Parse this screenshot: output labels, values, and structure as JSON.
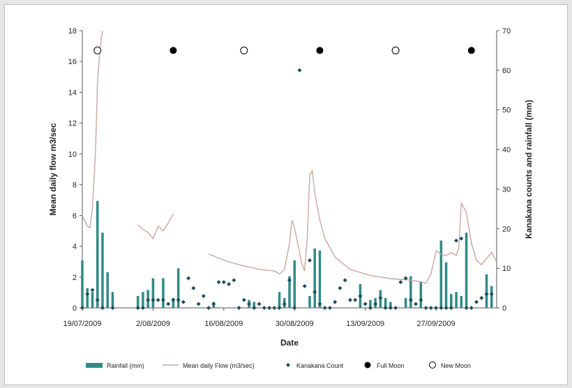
{
  "chart_data": {
    "type": "bar+line+scatter",
    "title": "",
    "xlabel": "Date",
    "ylabel_left": "Mean daily flow m3/sec",
    "ylabel_right": "Kanakana counts and rainfall (mm)",
    "ylim_left": [
      0,
      18
    ],
    "ylim_right": [
      0,
      70
    ],
    "yticks_left": [
      "0",
      "2",
      "4",
      "6",
      "8",
      "10",
      "12",
      "14",
      "16",
      "18"
    ],
    "yticks_right": [
      "0",
      "10",
      "20",
      "30",
      "40",
      "50",
      "60",
      "70"
    ],
    "x_start": "2009-07-19",
    "x_end": "2009-10-09",
    "xticks": [
      {
        "date": "2009-07-19",
        "label": "19/07/2009"
      },
      {
        "date": "2009-08-02",
        "label": "2/08/2009"
      },
      {
        "date": "2009-08-16",
        "label": "16/08/2009"
      },
      {
        "date": "2009-08-30",
        "label": "30/08/2009"
      },
      {
        "date": "2009-09-13",
        "label": "13/09/2009"
      },
      {
        "date": "2009-09-27",
        "label": "27/09/2009"
      }
    ],
    "grid": false,
    "legend_position": "bottom",
    "colors": {
      "rainfall": "#2f8a86",
      "flow": "#c9a79e",
      "kanakana": "#1f4e5a",
      "moon": "#000000"
    },
    "series": [
      {
        "name": "Rainfall (mm)",
        "type": "bar",
        "axis": "right",
        "points": [
          [
            "2009-07-19",
            12
          ],
          [
            "2009-07-20",
            5
          ],
          [
            "2009-07-21",
            4
          ],
          [
            "2009-07-22",
            27
          ],
          [
            "2009-07-23",
            19
          ],
          [
            "2009-07-24",
            9
          ],
          [
            "2009-07-25",
            4
          ],
          [
            "2009-07-30",
            3
          ],
          [
            "2009-07-31",
            4
          ],
          [
            "2009-08-01",
            4.5
          ],
          [
            "2009-08-02",
            7.5
          ],
          [
            "2009-08-04",
            7.5
          ],
          [
            "2009-08-06",
            2.5
          ],
          [
            "2009-08-07",
            10
          ],
          [
            "2009-08-14",
            1.5
          ],
          [
            "2009-08-21",
            2
          ],
          [
            "2009-08-22",
            1.5
          ],
          [
            "2009-08-27",
            4
          ],
          [
            "2009-08-28",
            2.5
          ],
          [
            "2009-08-29",
            8
          ],
          [
            "2009-08-30",
            12
          ],
          [
            "2009-09-02",
            3
          ],
          [
            "2009-09-03",
            15
          ],
          [
            "2009-09-04",
            14.5
          ],
          [
            "2009-09-12",
            6
          ],
          [
            "2009-09-14",
            2
          ],
          [
            "2009-09-15",
            2.5
          ],
          [
            "2009-09-16",
            4.5
          ],
          [
            "2009-09-17",
            2.5
          ],
          [
            "2009-09-18",
            1.5
          ],
          [
            "2009-09-21",
            2.5
          ],
          [
            "2009-09-22",
            8
          ],
          [
            "2009-09-24",
            6.5
          ],
          [
            "2009-09-28",
            17
          ],
          [
            "2009-09-29",
            11.5
          ],
          [
            "2009-09-30",
            3.5
          ],
          [
            "2009-10-01",
            4
          ],
          [
            "2009-10-02",
            3
          ],
          [
            "2009-10-03",
            19
          ],
          [
            "2009-10-07",
            8.5
          ],
          [
            "2009-10-08",
            5.5
          ]
        ]
      },
      {
        "name": "Mean daily Flow (m3/sec)",
        "type": "line",
        "axis": "left",
        "segments": [
          [
            [
              "2009-07-19",
              6
            ],
            [
              "2009-07-20",
              5.3
            ],
            [
              "2009-07-20.5",
              5.2
            ],
            [
              "2009-07-21",
              6.5
            ],
            [
              "2009-07-21.6",
              10
            ],
            [
              "2009-07-22",
              14.5
            ],
            [
              "2009-07-22.5",
              16.9
            ],
            [
              "2009-07-23",
              18
            ]
          ],
          [
            [
              "2009-07-30",
              5.4
            ],
            [
              "2009-07-31",
              5.1
            ],
            [
              "2009-08-01",
              4.9
            ],
            [
              "2009-08-02",
              4.5
            ],
            [
              "2009-08-03",
              5.3
            ],
            [
              "2009-08-04",
              5
            ],
            [
              "2009-08-05",
              5.5
            ],
            [
              "2009-08-06",
              6.1
            ]
          ],
          [
            [
              "2009-08-13",
              3.5
            ],
            [
              "2009-08-16",
              3.1
            ],
            [
              "2009-08-19",
              2.8
            ],
            [
              "2009-08-23",
              2.5
            ],
            [
              "2009-08-26",
              2.4
            ],
            [
              "2009-08-27",
              2.2
            ],
            [
              "2009-08-28",
              2.5
            ],
            [
              "2009-08-29",
              4.2
            ],
            [
              "2009-08-29.5",
              5.7
            ],
            [
              "2009-08-30",
              5.2
            ],
            [
              "2009-08-31",
              3.6
            ],
            [
              "2009-08-31.5",
              2.8
            ],
            [
              "2009-09-01",
              2.4
            ],
            [
              "2009-09-01.5",
              4.5
            ],
            [
              "2009-09-02",
              8.6
            ],
            [
              "2009-09-02.5",
              8.9
            ],
            [
              "2009-09-03",
              7.5
            ],
            [
              "2009-09-04",
              5.7
            ],
            [
              "2009-09-05",
              4.5
            ],
            [
              "2009-09-07",
              3.3
            ],
            [
              "2009-09-10",
              2.5
            ],
            [
              "2009-09-14",
              2.1
            ],
            [
              "2009-09-18",
              1.9
            ],
            [
              "2009-09-22",
              1.8
            ],
            [
              "2009-09-24",
              1.7
            ],
            [
              "2009-09-25",
              1.6
            ],
            [
              "2009-09-26",
              2.2
            ],
            [
              "2009-09-27",
              3.7
            ],
            [
              "2009-09-28",
              3.5
            ],
            [
              "2009-09-29",
              3.4
            ],
            [
              "2009-09-30",
              3.6
            ],
            [
              "2009-10-01",
              3.4
            ],
            [
              "2009-10-01.5",
              3.9
            ],
            [
              "2009-10-02",
              6.8
            ],
            [
              "2009-10-03",
              6.2
            ],
            [
              "2009-10-04",
              4.2
            ],
            [
              "2009-10-05",
              3.1
            ],
            [
              "2009-10-06",
              2.8
            ],
            [
              "2009-10-07",
              3.2
            ],
            [
              "2009-10-08",
              3.6
            ],
            [
              "2009-10-09",
              3.0
            ]
          ]
        ]
      },
      {
        "name": "Kanakana Count",
        "type": "scatter",
        "axis": "right",
        "points": [
          [
            "2009-07-19",
            0
          ],
          [
            "2009-07-20",
            3.5
          ],
          [
            "2009-07-21",
            4.5
          ],
          [
            "2009-07-22",
            2
          ],
          [
            "2009-07-23",
            0
          ],
          [
            "2009-07-25",
            0
          ],
          [
            "2009-07-30",
            0
          ],
          [
            "2009-07-31",
            0
          ],
          [
            "2009-08-01",
            2
          ],
          [
            "2009-08-02",
            2
          ],
          [
            "2009-08-03",
            2
          ],
          [
            "2009-08-04",
            2
          ],
          [
            "2009-08-05",
            1
          ],
          [
            "2009-08-06",
            2
          ],
          [
            "2009-08-07",
            2
          ],
          [
            "2009-08-08",
            1.5
          ],
          [
            "2009-08-09",
            7.5
          ],
          [
            "2009-08-10",
            5
          ],
          [
            "2009-08-11",
            1
          ],
          [
            "2009-08-12",
            3
          ],
          [
            "2009-08-13",
            0
          ],
          [
            "2009-08-14",
            1
          ],
          [
            "2009-08-15",
            6.5
          ],
          [
            "2009-08-16",
            6.5
          ],
          [
            "2009-08-17",
            6
          ],
          [
            "2009-08-18",
            7
          ],
          [
            "2009-08-19",
            0
          ],
          [
            "2009-08-20",
            2
          ],
          [
            "2009-08-21",
            1
          ],
          [
            "2009-08-22",
            0
          ],
          [
            "2009-08-23",
            1
          ],
          [
            "2009-08-24",
            0
          ],
          [
            "2009-08-25",
            0
          ],
          [
            "2009-08-26",
            0
          ],
          [
            "2009-08-27",
            0
          ],
          [
            "2009-08-28",
            1
          ],
          [
            "2009-08-29",
            7
          ],
          [
            "2009-08-30",
            0
          ],
          [
            "2009-08-31",
            60
          ],
          [
            "2009-09-01",
            5.5
          ],
          [
            "2009-09-02",
            12
          ],
          [
            "2009-09-03",
            4
          ],
          [
            "2009-09-04",
            1
          ],
          [
            "2009-09-05",
            0
          ],
          [
            "2009-09-06",
            0
          ],
          [
            "2009-09-07",
            1.5
          ],
          [
            "2009-09-08",
            5
          ],
          [
            "2009-09-09",
            7
          ],
          [
            "2009-09-10",
            2
          ],
          [
            "2009-09-11",
            2
          ],
          [
            "2009-09-12",
            3
          ],
          [
            "2009-09-13",
            1
          ],
          [
            "2009-09-14",
            0
          ],
          [
            "2009-09-15",
            1
          ],
          [
            "2009-09-16",
            2.5
          ],
          [
            "2009-09-17",
            0
          ],
          [
            "2009-09-18",
            0
          ],
          [
            "2009-09-19",
            0
          ],
          [
            "2009-09-20",
            6.5
          ],
          [
            "2009-09-21",
            7.5
          ],
          [
            "2009-09-22",
            2
          ],
          [
            "2009-09-23",
            1
          ],
          [
            "2009-09-24",
            2
          ],
          [
            "2009-09-25",
            0
          ],
          [
            "2009-09-26",
            0
          ],
          [
            "2009-09-27",
            0
          ],
          [
            "2009-09-28",
            0
          ],
          [
            "2009-09-29",
            0
          ],
          [
            "2009-09-30",
            0
          ],
          [
            "2009-10-01",
            17
          ],
          [
            "2009-10-02",
            17.5
          ],
          [
            "2009-10-03",
            0
          ],
          [
            "2009-10-04",
            0
          ],
          [
            "2009-10-05",
            1.5
          ],
          [
            "2009-10-06",
            2.5
          ],
          [
            "2009-10-07",
            3.5
          ],
          [
            "2009-10-08",
            3.5
          ]
        ]
      },
      {
        "name": "Full Moon",
        "type": "scatter",
        "axis": "right",
        "marker": "filled-circle",
        "points": [
          [
            "2009-08-06",
            65
          ],
          [
            "2009-09-04",
            65
          ],
          [
            "2009-10-04",
            65
          ]
        ]
      },
      {
        "name": "New Moon",
        "type": "scatter",
        "axis": "right",
        "marker": "open-circle",
        "points": [
          [
            "2009-07-22",
            65
          ],
          [
            "2009-08-20",
            65
          ],
          [
            "2009-09-19",
            65
          ]
        ]
      }
    ]
  }
}
